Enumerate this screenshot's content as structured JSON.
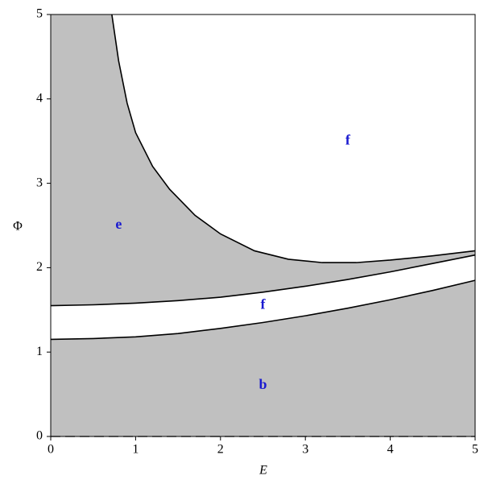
{
  "chart_data": {
    "type": "line",
    "xlabel": "E",
    "ylabel": "Φ",
    "xlim": [
      0,
      5
    ],
    "ylim": [
      0,
      5
    ],
    "xticks": [
      0,
      1,
      2,
      3,
      4,
      5
    ],
    "yticks": [
      0,
      1,
      2,
      3,
      4,
      5
    ],
    "series": [
      {
        "color": "#000000",
        "x": [
          0.72,
          0.8,
          0.9,
          1.0,
          1.2,
          1.4,
          1.7,
          2.0,
          2.4,
          2.8,
          3.2,
          3.6,
          4.0,
          4.5,
          5.0
        ],
        "values": [
          5.0,
          4.45,
          3.95,
          3.6,
          3.2,
          2.93,
          2.62,
          2.4,
          2.2,
          2.1,
          2.06,
          2.06,
          2.09,
          2.14,
          2.2
        ]
      },
      {
        "color": "#000000",
        "x": [
          0,
          0.5,
          1,
          1.5,
          2,
          2.5,
          3,
          3.5,
          4,
          4.5,
          5
        ],
        "values": [
          1.55,
          1.56,
          1.58,
          1.61,
          1.65,
          1.71,
          1.78,
          1.86,
          1.95,
          2.05,
          2.15
        ]
      },
      {
        "color": "#000000",
        "x": [
          0,
          0.5,
          1,
          1.5,
          2,
          2.5,
          3,
          3.5,
          4,
          4.5,
          5
        ],
        "values": [
          1.15,
          1.16,
          1.18,
          1.22,
          1.28,
          1.35,
          1.43,
          1.52,
          1.62,
          1.73,
          1.85
        ]
      },
      {
        "color": "#555555",
        "dash": true,
        "x": [
          0,
          5
        ],
        "values": [
          0,
          0
        ]
      }
    ],
    "annotations": [
      {
        "text": "e",
        "x": 0.8,
        "y": 2.5
      },
      {
        "text": "f",
        "x": 3.5,
        "y": 3.5
      },
      {
        "text": "f",
        "x": 2.5,
        "y": 1.55
      },
      {
        "text": "b",
        "x": 2.5,
        "y": 0.6
      }
    ]
  }
}
